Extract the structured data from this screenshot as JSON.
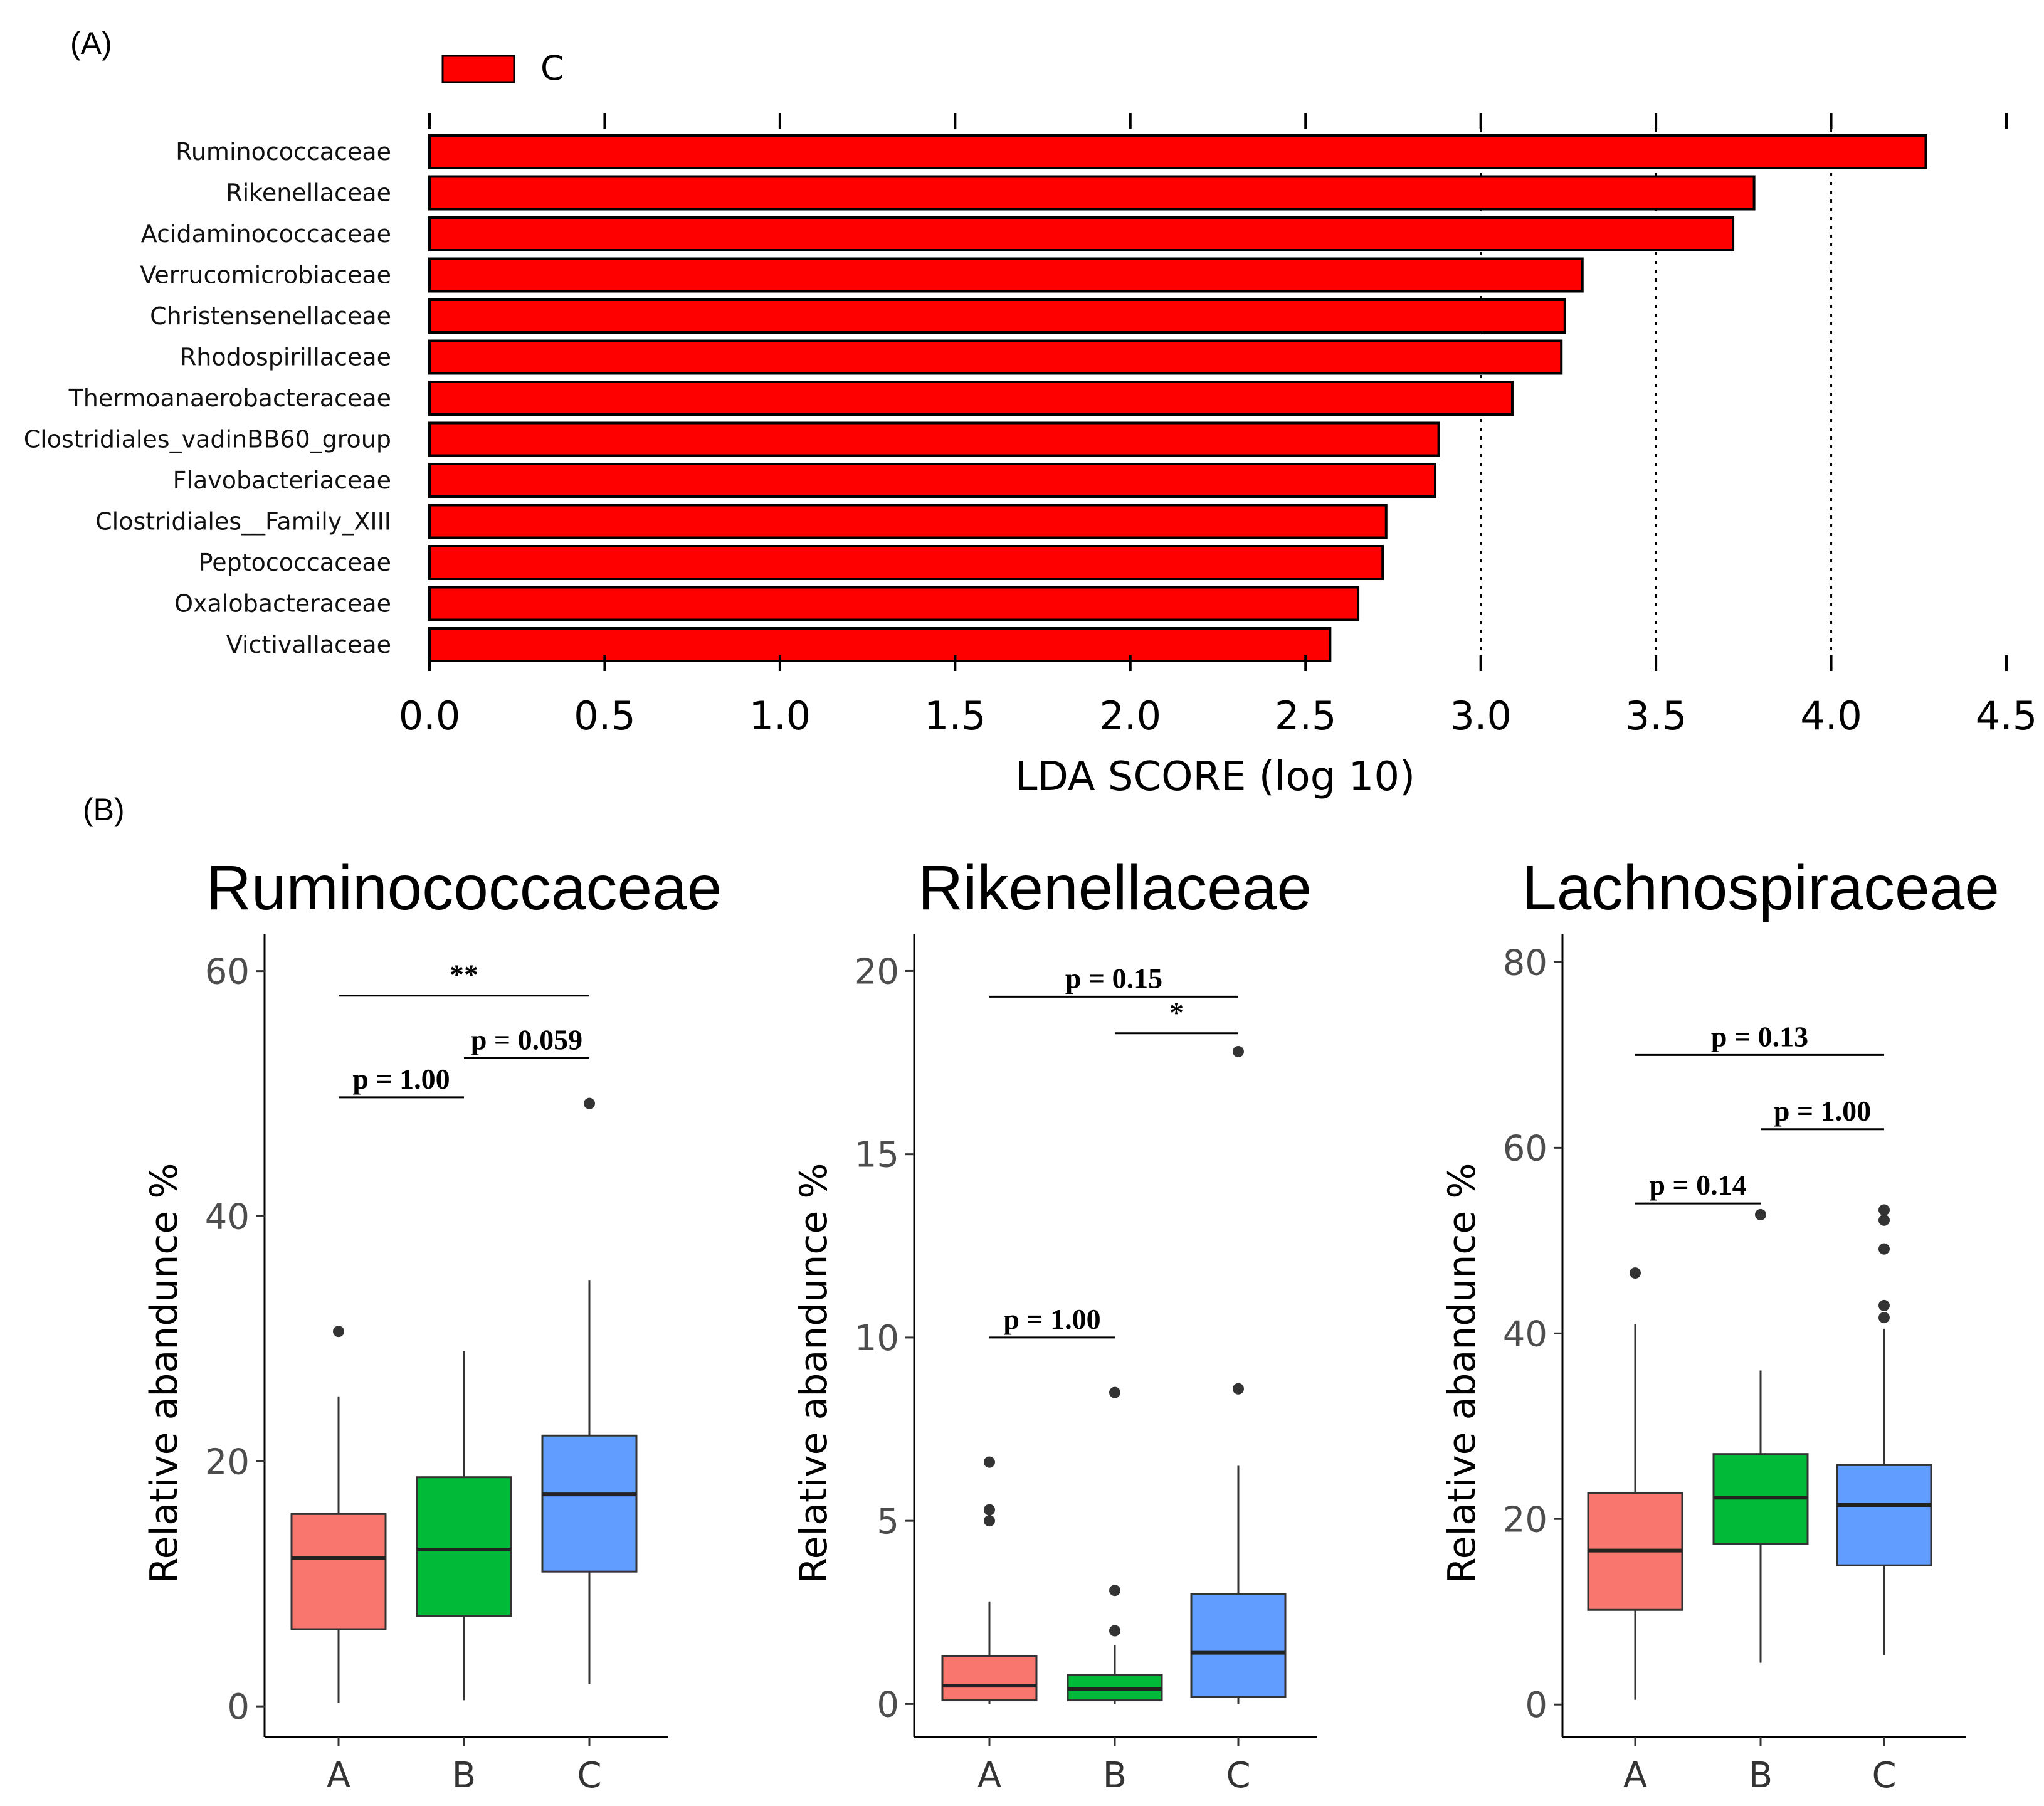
{
  "panel_labels": {
    "a": "(A)",
    "b": "(B)"
  },
  "chart_data": [
    {
      "type": "bar",
      "orientation": "horizontal",
      "legend": {
        "label": "C",
        "color": "#ff0000",
        "placement": "top-left"
      },
      "categories": [
        "Ruminococcaceae",
        "Rikenellaceae",
        "Acidaminococcaceae",
        "Verrucomicrobiaceae",
        "Christensenellaceae",
        "Rhodospirillaceae",
        "Thermoanaerobacteraceae",
        "Clostridiales_vadinBB60_group",
        "Flavobacteriaceae",
        "Clostridiales__Family_XIII",
        "Peptococcaceae",
        "Oxalobacteraceae",
        "Victivallaceae"
      ],
      "values": [
        4.27,
        3.78,
        3.72,
        3.29,
        3.24,
        3.23,
        3.09,
        2.88,
        2.87,
        2.73,
        2.72,
        2.65,
        2.57
      ],
      "xlabel": "LDA SCORE (log 10)",
      "xlim": [
        0,
        4.5
      ],
      "xticks": [
        "0.0",
        "0.5",
        "1.0",
        "1.5",
        "2.0",
        "2.5",
        "3.0",
        "3.5",
        "4.0",
        "4.5"
      ],
      "vlines_dotted": [
        3.0,
        3.5,
        4.0
      ],
      "color": "#ff0000"
    },
    {
      "type": "box",
      "title": "Ruminococcaceae",
      "ylabel": "Relative abandunce %",
      "ylim": [
        -2.5,
        63
      ],
      "yticks": [
        "0",
        "20",
        "40",
        "60"
      ],
      "categories": [
        "A",
        "B",
        "C"
      ],
      "colors": [
        "#f8766d",
        "#00ba38",
        "#619cff"
      ],
      "boxes": [
        {
          "whisker_low": 0.3,
          "q1": 6.3,
          "median": 12.1,
          "q3": 15.7,
          "whisker_high": 25.3,
          "outliers": [
            30.6
          ]
        },
        {
          "whisker_low": 0.5,
          "q1": 7.4,
          "median": 12.8,
          "q3": 18.7,
          "whisker_high": 29.0,
          "outliers": []
        },
        {
          "whisker_low": 1.8,
          "q1": 11.0,
          "median": 17.3,
          "q3": 22.1,
          "whisker_high": 34.8,
          "outliers": [
            49.2
          ]
        }
      ],
      "comparisons": [
        {
          "from": "A",
          "to": "C",
          "y": 58.0,
          "label": "**"
        },
        {
          "from": "A",
          "to": "B",
          "y": 49.7,
          "label": "p = 1.00"
        },
        {
          "from": "B",
          "to": "C",
          "y": 52.9,
          "label": "p = 0.059"
        }
      ]
    },
    {
      "type": "box",
      "title": "Rikenellaceae",
      "ylabel": "Relative abandunce %",
      "ylim": [
        -0.9,
        21
      ],
      "yticks": [
        "0",
        "5",
        "10",
        "15",
        "20"
      ],
      "categories": [
        "A",
        "B",
        "C"
      ],
      "colors": [
        "#f8766d",
        "#00ba38",
        "#619cff"
      ],
      "boxes": [
        {
          "whisker_low": 0.0,
          "q1": 0.1,
          "median": 0.5,
          "q3": 1.3,
          "whisker_high": 2.8,
          "outliers": [
            5.0,
            5.3,
            6.6
          ]
        },
        {
          "whisker_low": 0.0,
          "q1": 0.1,
          "median": 0.4,
          "q3": 0.8,
          "whisker_high": 1.6,
          "outliers": [
            2.0,
            3.1,
            8.5
          ]
        },
        {
          "whisker_low": 0.0,
          "q1": 0.2,
          "median": 1.4,
          "q3": 3.0,
          "whisker_high": 6.5,
          "outliers": [
            8.6,
            17.8
          ]
        }
      ],
      "comparisons": [
        {
          "from": "A",
          "to": "C",
          "y": 19.3,
          "label": "p = 0.15"
        },
        {
          "from": "B",
          "to": "C",
          "y": 18.3,
          "label": "*"
        },
        {
          "from": "A",
          "to": "B",
          "y": 10.0,
          "label": "p = 1.00"
        }
      ]
    },
    {
      "type": "box",
      "title": "Lachnospiraceae",
      "ylabel": "Relative abandunce %",
      "ylim": [
        -3.5,
        83
      ],
      "yticks": [
        "0",
        "20",
        "40",
        "60",
        "80"
      ],
      "categories": [
        "A",
        "B",
        "C"
      ],
      "colors": [
        "#f8766d",
        "#00ba38",
        "#619cff"
      ],
      "boxes": [
        {
          "whisker_low": 0.5,
          "q1": 10.2,
          "median": 16.6,
          "q3": 22.8,
          "whisker_high": 41.0,
          "outliers": [
            46.5
          ]
        },
        {
          "whisker_low": 4.5,
          "q1": 17.3,
          "median": 22.3,
          "q3": 27.0,
          "whisker_high": 36.0,
          "outliers": [
            52.8
          ]
        },
        {
          "whisker_low": 5.3,
          "q1": 15.0,
          "median": 21.5,
          "q3": 25.8,
          "whisker_high": 40.5,
          "outliers": [
            41.7,
            43.0,
            49.1,
            52.2,
            53.3
          ]
        }
      ],
      "comparisons": [
        {
          "from": "A",
          "to": "C",
          "y": 70.0,
          "label": "p = 0.13"
        },
        {
          "from": "B",
          "to": "C",
          "y": 62.0,
          "label": "p = 1.00"
        },
        {
          "from": "A",
          "to": "B",
          "y": 54.0,
          "label": "p = 0.14"
        }
      ]
    }
  ]
}
